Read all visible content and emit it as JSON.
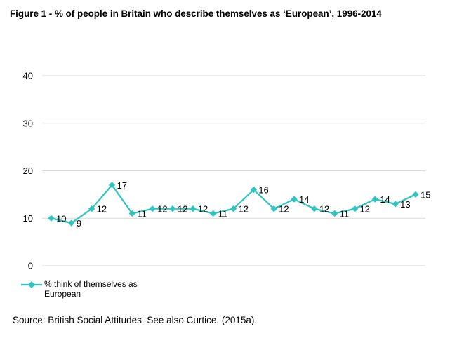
{
  "figure_title": "Figure 1 - % of people in Britain who describe themselves as ‘European’, 1996-2014",
  "source_note": "Source: British Social Attitudes. See also Curtice, (2015a).",
  "series_color": "#2ec4c0",
  "chart_data": {
    "type": "line",
    "title": "Figure 1 - % of people in Britain who describe themselves as ‘European’, 1996-2014",
    "xlabel": "",
    "ylabel": "",
    "ylim": [
      0,
      40
    ],
    "yticks": [
      "0",
      "10",
      "20",
      "30",
      "40"
    ],
    "grid": true,
    "legend_position": "bottom-left",
    "series": [
      {
        "name": "% think of themselves as European",
        "values": [
          10,
          9,
          12,
          17,
          11,
          12,
          12,
          12,
          11,
          12,
          16,
          12,
          14,
          12,
          11,
          12,
          14,
          13,
          15
        ],
        "data_labels": [
          "10",
          "9",
          "12",
          "17",
          "11",
          "12",
          "12",
          "12",
          "11",
          "12",
          "16",
          "12",
          "14",
          "12",
          "11",
          "12",
          "14",
          "13",
          "15"
        ]
      }
    ]
  }
}
